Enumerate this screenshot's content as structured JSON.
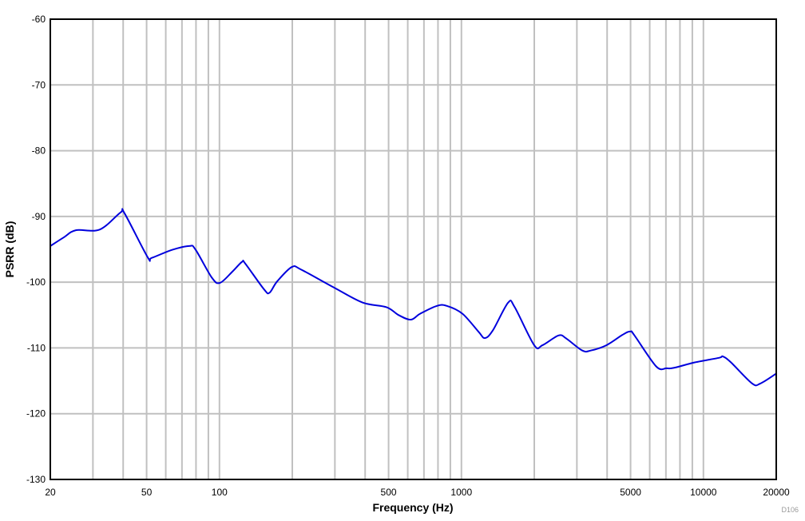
{
  "chart_data": {
    "type": "line",
    "title": "",
    "xlabel": "Frequency (Hz)",
    "ylabel": "PSRR (dB)",
    "xscale": "log",
    "xlim": [
      20,
      20000
    ],
    "ylim": [
      -130,
      -60
    ],
    "grid": true,
    "legend": "none",
    "x_tick_labels": [
      "20",
      "50",
      "100",
      "500",
      "1000",
      "5000",
      "10000",
      "20000"
    ],
    "x_tick_values": [
      20,
      50,
      100,
      500,
      1000,
      5000,
      10000,
      20000
    ],
    "y_tick_labels": [
      "-60",
      "-70",
      "-80",
      "-90",
      "-100",
      "-110",
      "-120",
      "-130"
    ],
    "y_tick_values": [
      -60,
      -70,
      -80,
      -90,
      -100,
      -110,
      -120,
      -130
    ],
    "annotation": "D106",
    "series": [
      {
        "name": "PSRR",
        "color": "#0000DD",
        "x": [
          20,
          22.7,
          25.5,
          32,
          39,
          40.5,
          50.5,
          52.5,
          63.5,
          75,
          79.5,
          93,
          100.5,
          113,
          124,
          128,
          153,
          161,
          173,
          199,
          218,
          300,
          391,
          490,
          550,
          618,
          675,
          792,
          870,
          1010,
          1175,
          1250,
          1350,
          1560,
          1660,
          2000,
          2160,
          2520,
          2720,
          3160,
          3420,
          3970,
          4630,
          4990,
          5190,
          6380,
          7040,
          7600,
          9210,
          11600,
          12040,
          13000,
          15900,
          17200,
          20000
        ],
        "y": [
          -94.5,
          -93.2,
          -92.1,
          -92.0,
          -89.4,
          -89.5,
          -96.2,
          -96.3,
          -95.1,
          -94.5,
          -95.0,
          -99.3,
          -100.1,
          -98.4,
          -96.9,
          -97.2,
          -101.1,
          -101.6,
          -99.9,
          -97.7,
          -98.1,
          -100.9,
          -103.1,
          -103.8,
          -105.0,
          -105.7,
          -104.8,
          -103.6,
          -103.6,
          -104.8,
          -107.5,
          -108.5,
          -107.3,
          -103.1,
          -103.8,
          -109.6,
          -109.6,
          -108.1,
          -108.6,
          -110.4,
          -110.4,
          -109.6,
          -108.0,
          -107.5,
          -108.1,
          -112.8,
          -113.1,
          -113.0,
          -112.2,
          -111.5,
          -111.3,
          -112.2,
          -115.4,
          -115.4,
          -113.9
        ]
      }
    ]
  }
}
